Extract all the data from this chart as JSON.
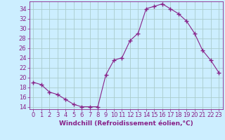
{
  "x": [
    0,
    1,
    2,
    3,
    4,
    5,
    6,
    7,
    8,
    9,
    10,
    11,
    12,
    13,
    14,
    15,
    16,
    17,
    18,
    19,
    20,
    21,
    22,
    23
  ],
  "y": [
    19.0,
    18.5,
    17.0,
    16.5,
    15.5,
    14.5,
    14.0,
    14.0,
    14.0,
    20.5,
    23.5,
    24.0,
    27.5,
    29.0,
    34.0,
    34.5,
    35.0,
    34.0,
    33.0,
    31.5,
    29.0,
    25.5,
    23.5,
    21.0
  ],
  "line_color": "#882288",
  "marker": "P",
  "marker_size": 3,
  "bg_color": "#cceeff",
  "grid_color": "#aacccc",
  "xlabel": "Windchill (Refroidissement éolien,°C)",
  "xlim": [
    -0.5,
    23.5
  ],
  "ylim": [
    13.5,
    35.5
  ],
  "yticks": [
    14,
    16,
    18,
    20,
    22,
    24,
    26,
    28,
    30,
    32,
    34
  ],
  "xtick_labels": [
    "0",
    "1",
    "2",
    "3",
    "4",
    "5",
    "6",
    "7",
    "8",
    "9",
    "10",
    "11",
    "12",
    "13",
    "14",
    "15",
    "16",
    "17",
    "18",
    "19",
    "20",
    "21",
    "22",
    "23"
  ],
  "tick_color": "#882288",
  "label_color": "#882288",
  "label_fontsize": 6.5,
  "tick_fontsize": 6.0
}
